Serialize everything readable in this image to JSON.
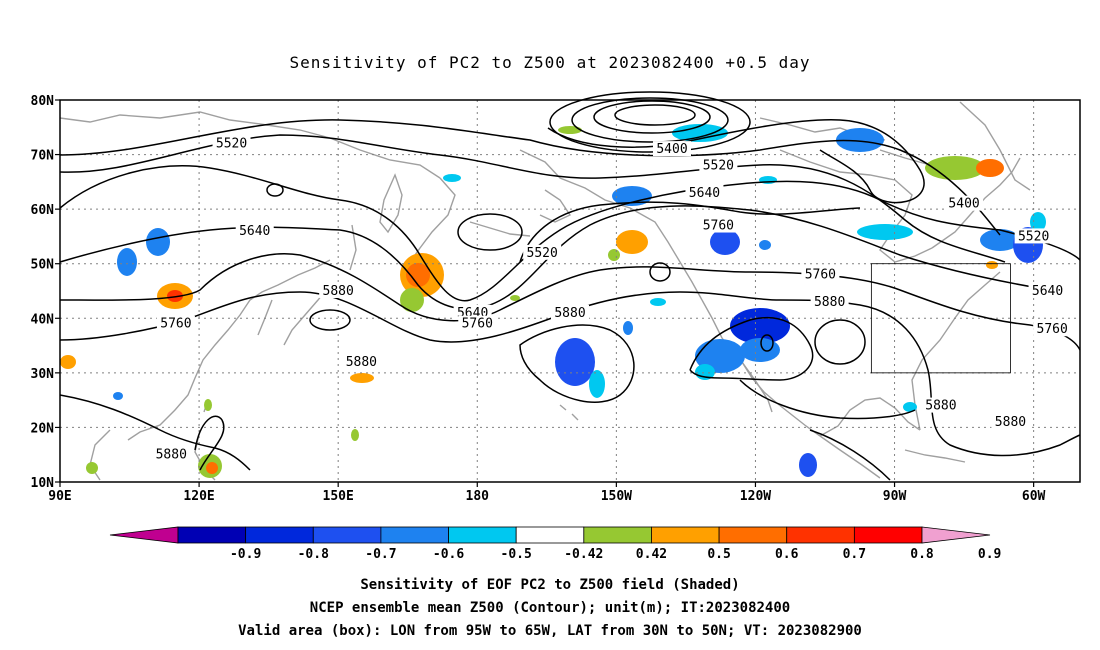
{
  "title": "Sensitivity of PC2 to Z500 at 2023082400 +0.5 day",
  "map": {
    "lon_ticks": [
      "90E",
      "120E",
      "150E",
      "180",
      "150W",
      "120W",
      "90W",
      "60W"
    ],
    "lat_ticks": [
      "80N",
      "70N",
      "60N",
      "50N",
      "40N",
      "30N",
      "20N",
      "10N"
    ],
    "lon_range": [
      90,
      310
    ],
    "lat_range": [
      10,
      80
    ],
    "grid": "dotted",
    "contour_color": "#000000",
    "coast_color": "#a0a0a0",
    "contour_labels": [
      {
        "text": "5520",
        "lon": 127,
        "lat": 72
      },
      {
        "text": "5400",
        "lon": 222,
        "lat": 71
      },
      {
        "text": "5520",
        "lon": 232,
        "lat": 68
      },
      {
        "text": "5640",
        "lon": 229,
        "lat": 63
      },
      {
        "text": "5760",
        "lon": 232,
        "lat": 57
      },
      {
        "text": "5400",
        "lon": 285,
        "lat": 61
      },
      {
        "text": "5520",
        "lon": 300,
        "lat": 55
      },
      {
        "text": "5640",
        "lon": 132,
        "lat": 56
      },
      {
        "text": "5520",
        "lon": 194,
        "lat": 52
      },
      {
        "text": "5760",
        "lon": 254,
        "lat": 48
      },
      {
        "text": "5640",
        "lon": 303,
        "lat": 45
      },
      {
        "text": "5880",
        "lon": 150,
        "lat": 45
      },
      {
        "text": "5640",
        "lon": 179,
        "lat": 41
      },
      {
        "text": "5760",
        "lon": 180,
        "lat": 39
      },
      {
        "text": "5880",
        "lon": 256,
        "lat": 43
      },
      {
        "text": "5880",
        "lon": 200,
        "lat": 41
      },
      {
        "text": "5760",
        "lon": 115,
        "lat": 39
      },
      {
        "text": "5760",
        "lon": 304,
        "lat": 38
      },
      {
        "text": "5880",
        "lon": 155,
        "lat": 32
      },
      {
        "text": "5880",
        "lon": 280,
        "lat": 24
      },
      {
        "text": "5880",
        "lon": 295,
        "lat": 21
      },
      {
        "text": "5880",
        "lon": 114,
        "lat": 15
      }
    ],
    "box": {
      "lon_min": 265,
      "lon_max": 295,
      "lat_min": 30,
      "lat_max": 50
    }
  },
  "colorbar": {
    "labels": [
      "-0.9",
      "-0.8",
      "-0.7",
      "-0.6",
      "-0.5",
      "-0.42",
      "0.42",
      "0.5",
      "0.6",
      "0.7",
      "0.8",
      "0.9"
    ],
    "colors": [
      "#c00090",
      "#0000b4",
      "#0028dc",
      "#1e50f0",
      "#1e82f0",
      "#00c8f0",
      "#ffffff",
      "#96c832",
      "#ffa000",
      "#ff6e00",
      "#ff3200",
      "#ff0000",
      "#f0a0d0"
    ]
  },
  "caption": [
    "Sensitivity of EOF PC2 to Z500 field (Shaded)",
    "NCEP ensemble mean Z500 (Contour); unit(m); IT:2023082400",
    "Valid area (box): LON from 95W to 65W, LAT from 30N to 50N; VT: 2023082900"
  ]
}
